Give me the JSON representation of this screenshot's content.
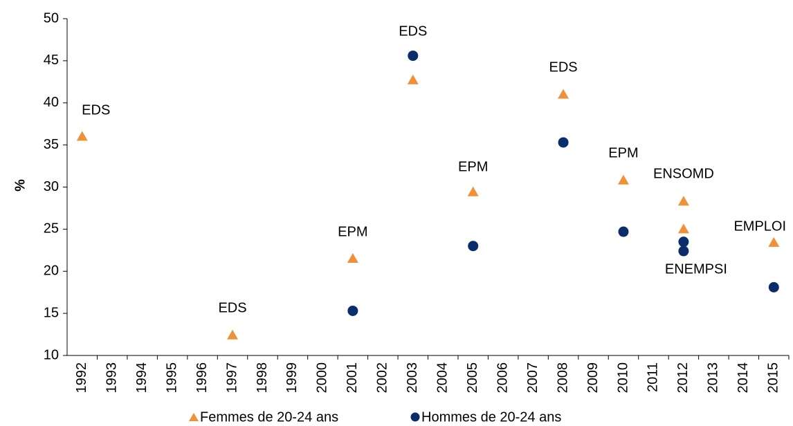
{
  "chart_data": {
    "type": "scatter",
    "y_label": "%",
    "xlim": [
      1991.5,
      2015.5
    ],
    "xticks": [
      1992,
      1993,
      1994,
      1995,
      1996,
      1997,
      1998,
      1999,
      2000,
      2001,
      2002,
      2003,
      2004,
      2005,
      2006,
      2007,
      2008,
      2009,
      2010,
      2011,
      2012,
      2013,
      2014,
      2015
    ],
    "ylim": [
      10,
      50
    ],
    "yticks": [
      10,
      15,
      20,
      25,
      30,
      35,
      40,
      45,
      50
    ],
    "grid": false,
    "legend": "bottom",
    "series": [
      {
        "name": "Femmes de 20-24 ans",
        "color": "#f0913a",
        "marker": "triangle",
        "x": [
          1992,
          1997,
          2001,
          2003,
          2005,
          2008,
          2010,
          2012,
          2012,
          2015
        ],
        "values": [
          36,
          12.4,
          21.5,
          42.7,
          29.4,
          41,
          30.8,
          28.3,
          25,
          23.4
        ]
      },
      {
        "name": "Hommes de 20-24 ans",
        "color": "#0b2d6b",
        "marker": "circle",
        "x": [
          2001,
          2003,
          2005,
          2008,
          2010,
          2012,
          2012,
          2015
        ],
        "values": [
          15.3,
          45.6,
          23,
          35.3,
          24.7,
          23.5,
          22.4,
          18.1
        ]
      }
    ],
    "annotations": [
      {
        "text": "EDS",
        "x": 1992
      },
      {
        "text": "EDS",
        "x": 1997
      },
      {
        "text": "EPM",
        "x": 2001
      },
      {
        "text": "EDS",
        "x": 2003
      },
      {
        "text": "EPM",
        "x": 2005
      },
      {
        "text": "EDS",
        "x": 2008
      },
      {
        "text": "EPM",
        "x": 2010
      },
      {
        "text": "ENSOMD",
        "x": 2012
      },
      {
        "text": "ENEMPSI",
        "x": 2012
      },
      {
        "text": "EMPLOI",
        "x": 2015
      }
    ]
  }
}
